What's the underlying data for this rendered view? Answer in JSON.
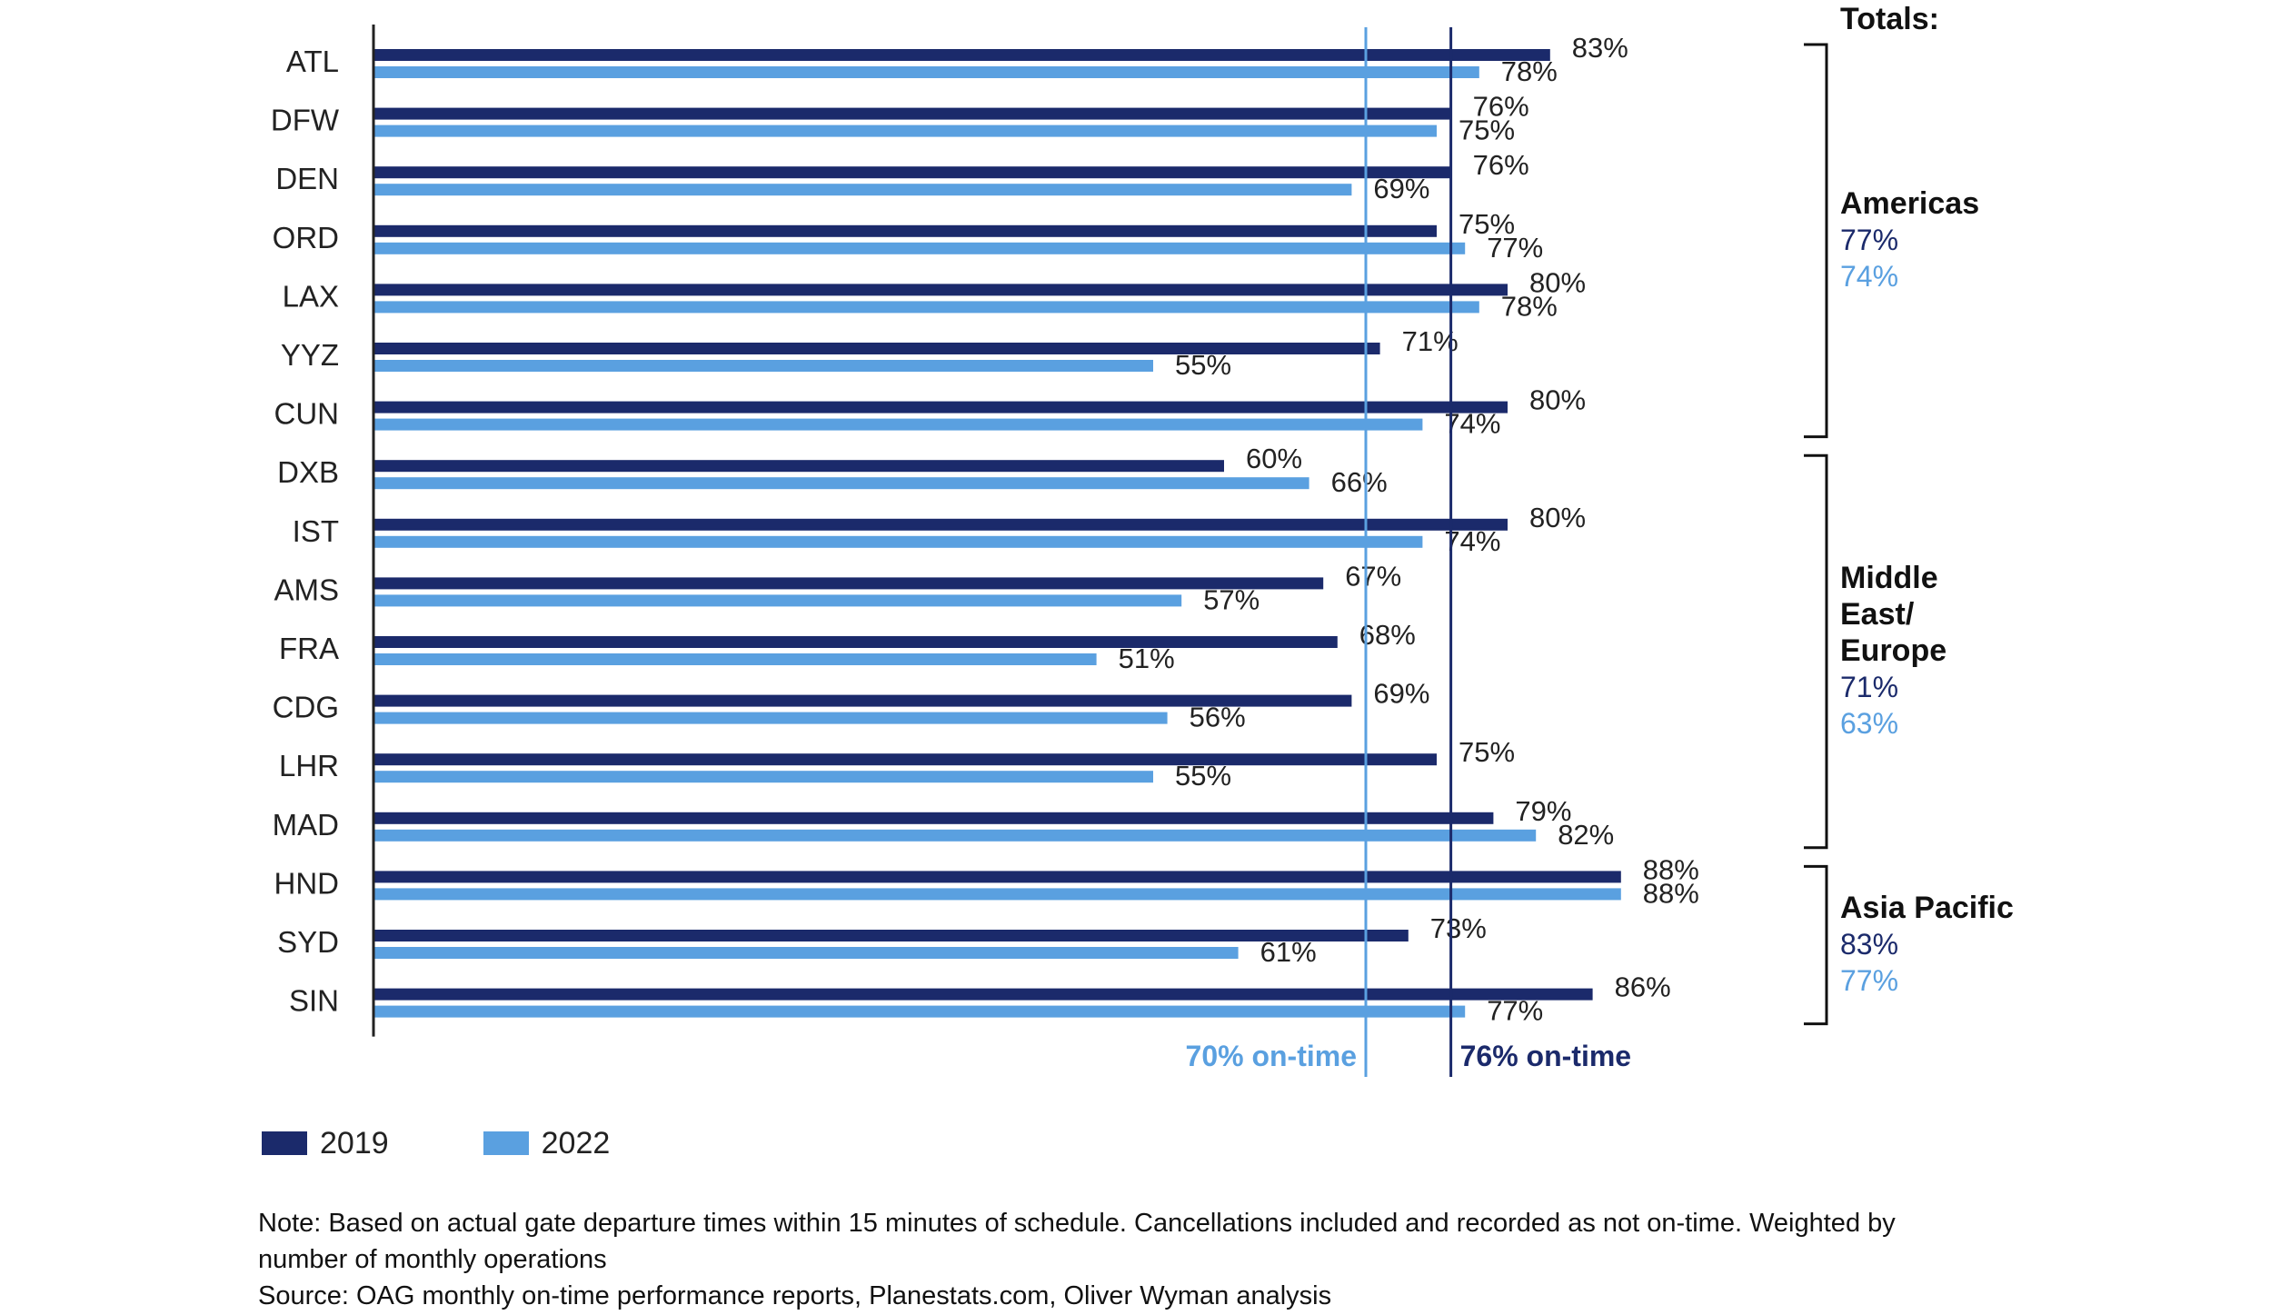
{
  "colors": {
    "y2019": "#1b2a6b",
    "y2022": "#5aa0e0",
    "axis": "#222222",
    "label": "#222222"
  },
  "legend": [
    {
      "key": "y2019",
      "label": "2019"
    },
    {
      "key": "y2022",
      "label": "2022"
    }
  ],
  "notes": {
    "note": "Note: Based on actual gate departure times within 15 minutes of schedule. Cancellations included and recorded as not on-time. Weighted by",
    "note2": "number of monthly operations",
    "source": "Source: OAG monthly on-time performance reports, Planestats.com, Oliver Wyman analysis"
  },
  "chart_data": {
    "type": "bar",
    "orientation": "horizontal",
    "value_suffix": "%",
    "categories": [
      "ATL",
      "DFW",
      "DEN",
      "ORD",
      "LAX",
      "YYZ",
      "CUN",
      "DXB",
      "IST",
      "AMS",
      "FRA",
      "CDG",
      "LHR",
      "MAD",
      "HND",
      "SYD",
      "SIN"
    ],
    "series": [
      {
        "name": "2019",
        "color_key": "y2019",
        "values": [
          83,
          76,
          76,
          75,
          80,
          71,
          80,
          60,
          80,
          67,
          68,
          69,
          75,
          79,
          88,
          73,
          86
        ]
      },
      {
        "name": "2022",
        "color_key": "y2022",
        "values": [
          78,
          75,
          69,
          77,
          78,
          55,
          74,
          66,
          74,
          57,
          51,
          56,
          55,
          82,
          88,
          61,
          77
        ]
      }
    ],
    "xlim": [
      0,
      100
    ],
    "reference_lines": [
      {
        "value": 70,
        "label": "70% on-time",
        "color_key": "y2022"
      },
      {
        "value": 76,
        "label": "76% on-time",
        "color_key": "y2019"
      }
    ],
    "totals_title": "Totals:",
    "groups": [
      {
        "name_lines": [
          "Americas"
        ],
        "from": 0,
        "to": 6,
        "total_2019": "77%",
        "total_2022": "74%"
      },
      {
        "name_lines": [
          "Middle",
          "East/",
          "Europe"
        ],
        "from": 7,
        "to": 13,
        "total_2019": "71%",
        "total_2022": "63%"
      },
      {
        "name_lines": [
          "Asia Pacific"
        ],
        "from": 14,
        "to": 16,
        "total_2019": "83%",
        "total_2022": "77%"
      }
    ]
  }
}
